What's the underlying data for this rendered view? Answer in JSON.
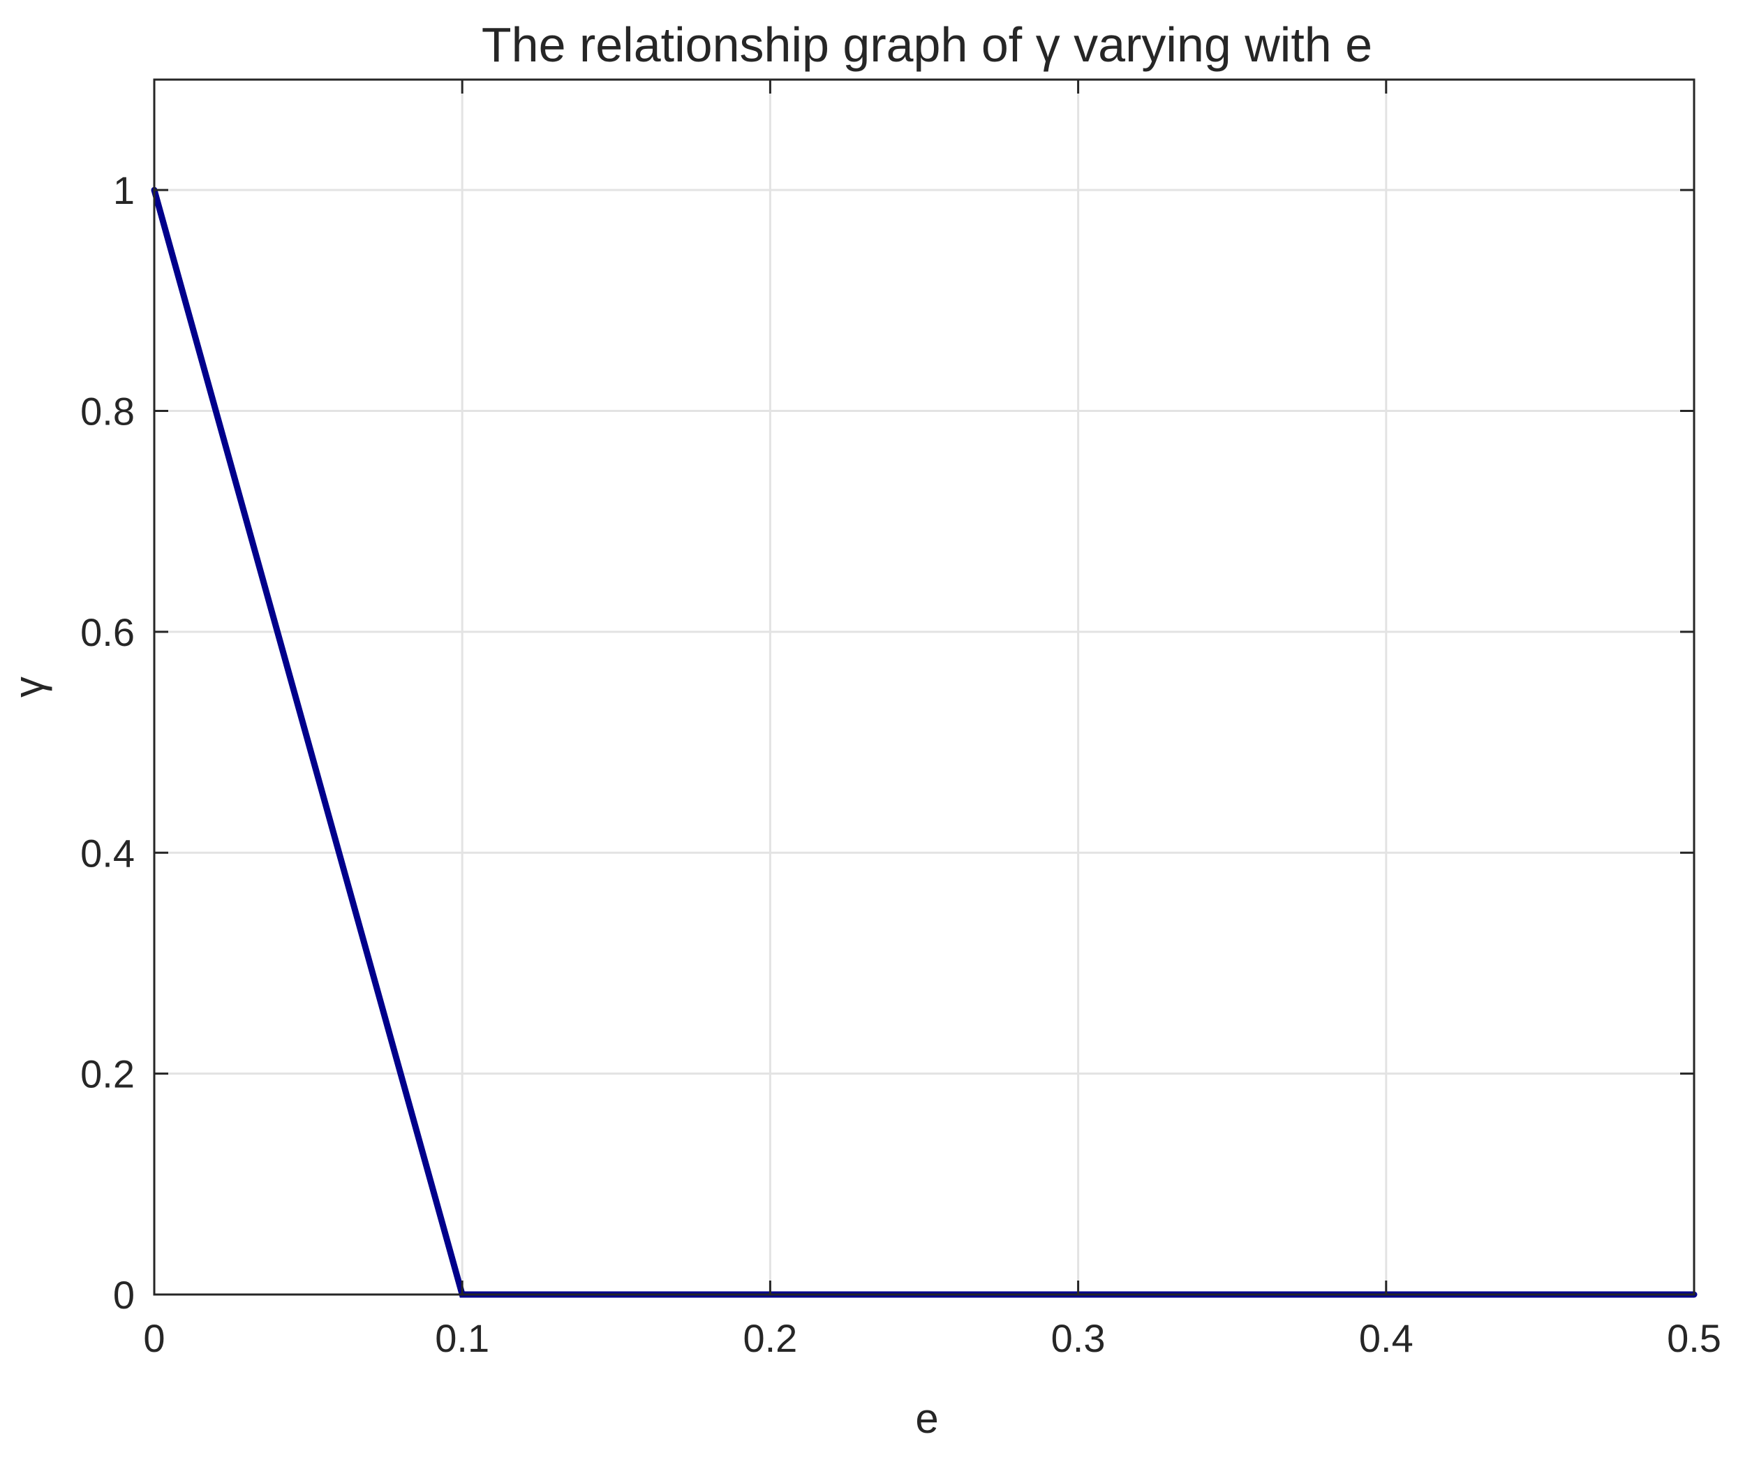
{
  "chart_data": {
    "type": "line",
    "title": "The relationship graph of γ varying with e",
    "xlabel": "e",
    "ylabel": "γ",
    "xlim": [
      0,
      0.5
    ],
    "ylim": [
      0,
      1.1
    ],
    "grid": true,
    "xticks": [
      "0",
      "0.1",
      "0.2",
      "0.3",
      "0.4",
      "0.5"
    ],
    "yticks": [
      "0",
      "0.2",
      "0.4",
      "0.6",
      "0.8",
      "1"
    ],
    "series": [
      {
        "color": "#00008b",
        "x": [
          0,
          0.1,
          0.5
        ],
        "y": [
          1,
          0,
          0
        ]
      }
    ]
  }
}
